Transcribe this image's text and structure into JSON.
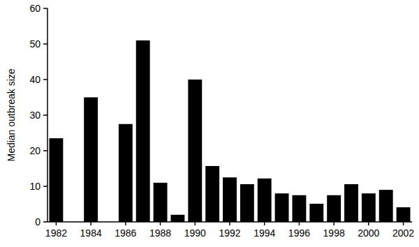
{
  "chart_data": {
    "type": "bar",
    "y_label": "Median outbreak size",
    "categories": [
      "1982",
      null,
      "1984",
      null,
      "1986",
      null,
      "1988",
      null,
      "1990",
      null,
      "1992",
      null,
      "1994",
      null,
      "1996",
      null,
      "1998",
      null,
      "2000",
      null,
      "2002"
    ],
    "values": [
      23.5,
      null,
      35,
      null,
      27.5,
      51,
      11,
      2,
      40,
      15.7,
      12.5,
      10.6,
      12.2,
      8,
      7.5,
      5.1,
      7.5,
      10.6,
      8,
      9,
      4.1
    ],
    "color": "#000000",
    "ylim": [
      0,
      60
    ],
    "yticks": [
      0,
      10,
      20,
      30,
      40,
      50,
      60
    ],
    "grid": false
  }
}
